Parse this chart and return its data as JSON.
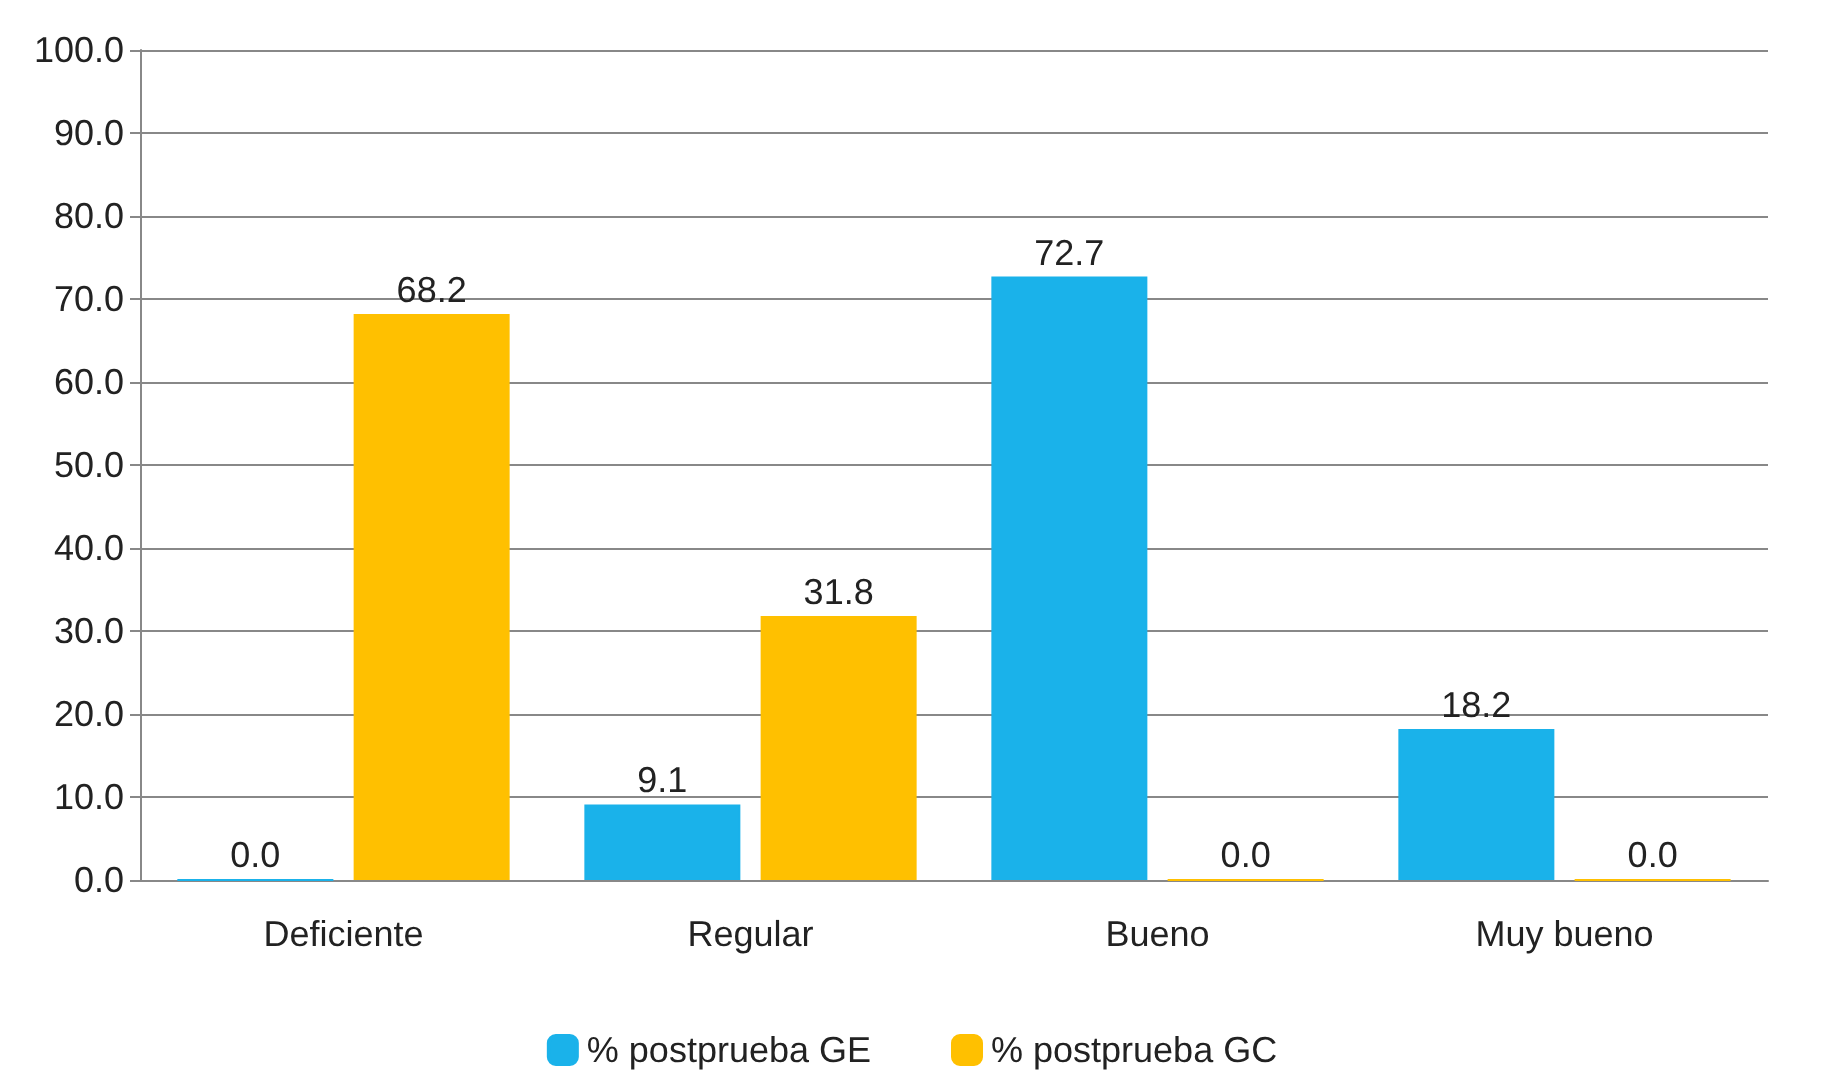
{
  "chart_data": {
    "type": "bar",
    "categories": [
      "Deficiente",
      "Regular",
      "Bueno",
      "Muy bueno"
    ],
    "series": [
      {
        "name": "% postprueba GE",
        "color": "#1ab2ea",
        "values": [
          0.0,
          9.1,
          72.7,
          18.2
        ],
        "value_labels": [
          "0.0",
          "9.1",
          "72.7",
          "18.2"
        ]
      },
      {
        "name": "% postprueba GC",
        "color": "#ffc000",
        "values": [
          68.2,
          31.8,
          0.0,
          0.0
        ],
        "value_labels": [
          "68.2",
          "31.8",
          "0.0",
          "0.0"
        ]
      }
    ],
    "ylim": [
      0,
      100
    ],
    "yticks": [
      {
        "value": 0,
        "label": "0.0"
      },
      {
        "value": 10,
        "label": "10.0"
      },
      {
        "value": 20,
        "label": "20.0"
      },
      {
        "value": 30,
        "label": "30.0"
      },
      {
        "value": 40,
        "label": "40.0"
      },
      {
        "value": 50,
        "label": "50.0"
      },
      {
        "value": 60,
        "label": "60.0"
      },
      {
        "value": 70,
        "label": "70.0"
      },
      {
        "value": 80,
        "label": "80.0"
      },
      {
        "value": 90,
        "label": "90.0"
      },
      {
        "value": 100,
        "label": "100.0"
      }
    ],
    "grid": "y",
    "legend": "bottom"
  }
}
